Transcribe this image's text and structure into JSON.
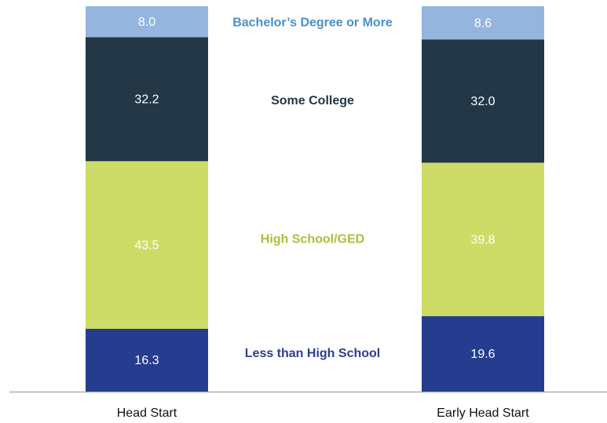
{
  "chart_data": {
    "type": "stacked_bar",
    "categories": [
      "Head Start",
      "Early Head Start"
    ],
    "series": [
      {
        "name": "Less than High School",
        "color": "#263d8f",
        "label_color": "#2a3f8f",
        "values": [
          16.3,
          19.6
        ],
        "value_labels": [
          "16.3",
          "19.6"
        ]
      },
      {
        "name": "High School/GED",
        "color": "#cddc66",
        "label_color": "#a6c23a",
        "values": [
          43.5,
          39.8
        ],
        "value_labels": [
          "43.5",
          "39.8"
        ]
      },
      {
        "name": "Some College",
        "color": "#233746",
        "label_color": "#233746",
        "values": [
          32.2,
          32.0
        ],
        "value_labels": [
          "32.2",
          "32.0"
        ]
      },
      {
        "name": "Bachelor’s Degree or More",
        "color": "#95b5df",
        "label_color": "#4a90c8",
        "values": [
          8.0,
          8.6
        ],
        "value_labels": [
          "8.0",
          "8.6"
        ]
      }
    ],
    "ylim": [
      0,
      100
    ]
  }
}
